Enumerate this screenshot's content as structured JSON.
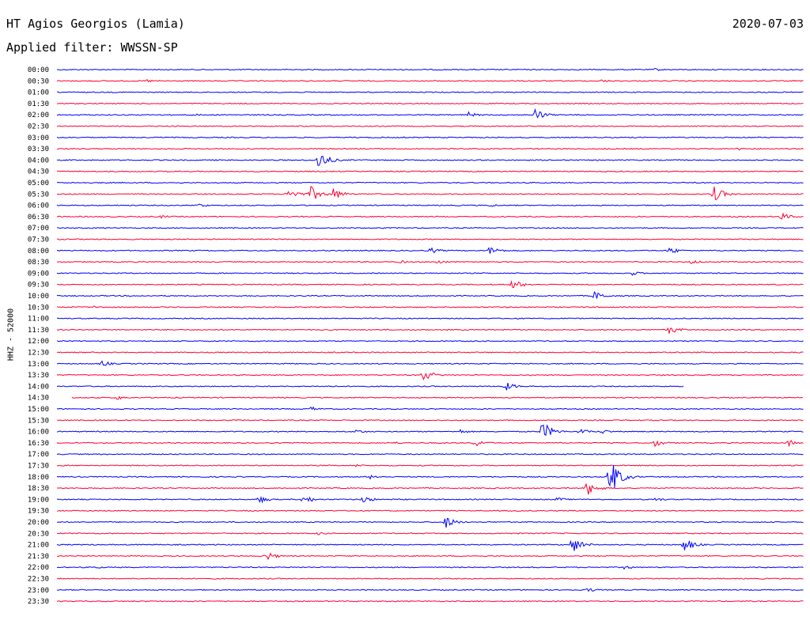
{
  "header": {
    "station": "HT Agios Georgios (Lamia)",
    "date": "2020-07-03",
    "filter": "Applied filter: WWSSN-SP",
    "channel": "HHZ - 52000"
  },
  "colors": {
    "blue": "#0000ff",
    "red": "#ff0033"
  },
  "chart_data": {
    "type": "line",
    "title": "HT Agios Georgios (Lamia)",
    "subtitle": "Applied filter: WWSSN-SP",
    "ylabel": "HHZ - 52000",
    "xlabel": "",
    "grid": false,
    "row_labels": [
      "00:00",
      "00:30",
      "01:00",
      "01:30",
      "02:00",
      "02:30",
      "03:00",
      "03:30",
      "04:00",
      "04:30",
      "05:00",
      "05:30",
      "06:00",
      "06:30",
      "07:00",
      "07:30",
      "08:00",
      "08:30",
      "09:00",
      "09:30",
      "10:00",
      "10:30",
      "11:00",
      "11:30",
      "12:00",
      "12:30",
      "13:00",
      "13:30",
      "14:00",
      "14:30",
      "15:00",
      "15:30",
      "16:00",
      "16:30",
      "17:00",
      "17:30",
      "18:00",
      "18:30",
      "19:00",
      "19:30",
      "20:00",
      "20:30",
      "21:00",
      "21:30",
      "22:00",
      "22:30",
      "23:00",
      "23:30"
    ],
    "row_colors": [
      "blue",
      "red"
    ],
    "partial_rows": [
      {
        "row": 28,
        "end_fraction": 0.84
      },
      {
        "row": 29,
        "start_fraction": 0.02
      }
    ],
    "events": [
      {
        "row": 0,
        "t": 0.8,
        "amp": 2
      },
      {
        "row": 1,
        "t": 0.12,
        "amp": 2
      },
      {
        "row": 1,
        "t": 0.73,
        "amp": 2
      },
      {
        "row": 4,
        "t": 0.18,
        "amp": 2
      },
      {
        "row": 4,
        "t": 0.55,
        "amp": 4
      },
      {
        "row": 4,
        "t": 0.64,
        "amp": 8
      },
      {
        "row": 7,
        "t": 0.91,
        "amp": 2
      },
      {
        "row": 8,
        "t": 0.35,
        "amp": 12
      },
      {
        "row": 11,
        "t": 0.31,
        "amp": 8
      },
      {
        "row": 11,
        "t": 0.34,
        "amp": 10
      },
      {
        "row": 11,
        "t": 0.37,
        "amp": 8
      },
      {
        "row": 11,
        "t": 0.88,
        "amp": 10
      },
      {
        "row": 12,
        "t": 0.19,
        "amp": 3
      },
      {
        "row": 12,
        "t": 0.58,
        "amp": 2
      },
      {
        "row": 13,
        "t": 0.14,
        "amp": 2
      },
      {
        "row": 13,
        "t": 0.97,
        "amp": 5
      },
      {
        "row": 16,
        "t": 0.5,
        "amp": 4
      },
      {
        "row": 16,
        "t": 0.58,
        "amp": 6
      },
      {
        "row": 16,
        "t": 0.82,
        "amp": 5
      },
      {
        "row": 17,
        "t": 0.46,
        "amp": 2
      },
      {
        "row": 17,
        "t": 0.51,
        "amp": 3
      },
      {
        "row": 17,
        "t": 0.85,
        "amp": 3
      },
      {
        "row": 18,
        "t": 0.77,
        "amp": 3
      },
      {
        "row": 19,
        "t": 0.61,
        "amp": 7
      },
      {
        "row": 20,
        "t": 0.72,
        "amp": 6
      },
      {
        "row": 21,
        "t": 0.05,
        "amp": 2
      },
      {
        "row": 23,
        "t": 0.82,
        "amp": 6
      },
      {
        "row": 26,
        "t": 0.06,
        "amp": 4
      },
      {
        "row": 27,
        "t": 0.49,
        "amp": 8
      },
      {
        "row": 28,
        "t": 0.36,
        "amp": 2
      },
      {
        "row": 28,
        "t": 0.6,
        "amp": 6
      },
      {
        "row": 29,
        "t": 0.08,
        "amp": 3
      },
      {
        "row": 30,
        "t": 0.34,
        "amp": 3
      },
      {
        "row": 32,
        "t": 0.4,
        "amp": 3
      },
      {
        "row": 32,
        "t": 0.54,
        "amp": 3
      },
      {
        "row": 32,
        "t": 0.65,
        "amp": 13
      },
      {
        "row": 32,
        "t": 0.7,
        "amp": 4
      },
      {
        "row": 32,
        "t": 0.73,
        "amp": 3
      },
      {
        "row": 33,
        "t": 0.45,
        "amp": 2
      },
      {
        "row": 33,
        "t": 0.56,
        "amp": 5
      },
      {
        "row": 33,
        "t": 0.8,
        "amp": 5
      },
      {
        "row": 33,
        "t": 0.98,
        "amp": 4
      },
      {
        "row": 35,
        "t": 0.4,
        "amp": 2
      },
      {
        "row": 36,
        "t": 0.42,
        "amp": 3
      },
      {
        "row": 36,
        "t": 0.74,
        "amp": 26
      },
      {
        "row": 37,
        "t": 0.71,
        "amp": 10
      },
      {
        "row": 38,
        "t": 0.27,
        "amp": 5
      },
      {
        "row": 38,
        "t": 0.33,
        "amp": 6
      },
      {
        "row": 38,
        "t": 0.41,
        "amp": 5
      },
      {
        "row": 38,
        "t": 0.67,
        "amp": 3
      },
      {
        "row": 38,
        "t": 0.8,
        "amp": 3
      },
      {
        "row": 40,
        "t": 0.52,
        "amp": 8
      },
      {
        "row": 41,
        "t": 0.35,
        "amp": 2
      },
      {
        "row": 41,
        "t": 0.89,
        "amp": 2
      },
      {
        "row": 42,
        "t": 0.69,
        "amp": 11
      },
      {
        "row": 42,
        "t": 0.84,
        "amp": 9
      },
      {
        "row": 43,
        "t": 0.28,
        "amp": 6
      },
      {
        "row": 44,
        "t": 0.05,
        "amp": 2
      },
      {
        "row": 44,
        "t": 0.76,
        "amp": 3
      },
      {
        "row": 46,
        "t": 0.71,
        "amp": 3
      }
    ]
  }
}
